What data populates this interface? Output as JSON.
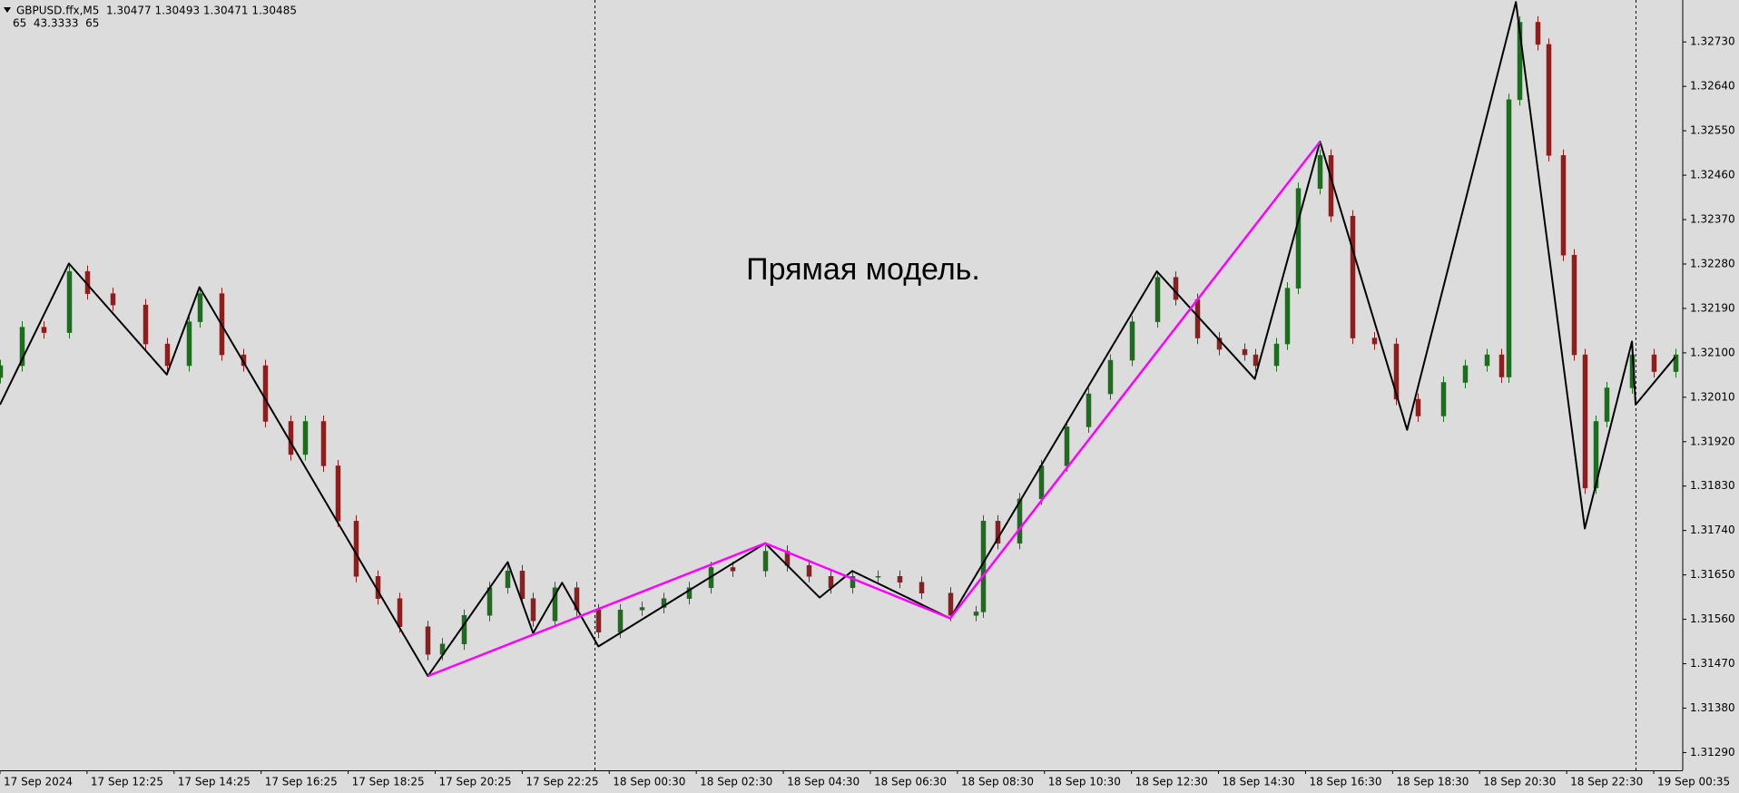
{
  "chart_data": {
    "type": "candlestick",
    "header": "GBPUSD.ffx,M5  1.30477 1.30493 1.30471 1.30485",
    "indicator": "65  43.3333  65",
    "annotation": "Прямая модель.",
    "up_color": "#1f6b1f",
    "down_color": "#8b1e1e",
    "background": "#dcdcdc",
    "x": [
      0,
      6,
      12,
      19,
      24,
      31,
      40,
      46,
      52,
      55,
      61,
      67,
      73,
      80,
      84,
      89,
      93,
      98,
      104,
      110,
      118,
      122,
      128,
      135,
      140,
      144,
      147,
      153,
      159,
      165,
      171,
      177,
      183,
      190,
      196,
      202,
      211,
      217,
      223,
      229,
      235,
      242,
      248,
      254,
      262,
      269,
      271,
      275,
      281,
      287,
      294,
      300,
      306,
      312,
      319,
      324,
      330,
      336,
      343,
      346,
      352,
      355,
      358,
      364,
      367,
      373,
      379,
      385,
      391,
      398,
      404,
      410,
      414,
      416,
      419,
      424,
      427,
      431,
      434,
      437,
      440,
      443,
      450,
      456,
      462
    ],
    "open": [
      1.3205,
      1.32074,
      1.32152,
      1.32141,
      1.32265,
      1.3222,
      1.32197,
      1.32118,
      1.32074,
      1.32163,
      1.3222,
      1.32096,
      1.32074,
      1.31961,
      1.31894,
      1.31961,
      1.31871,
      1.31759,
      1.31647,
      1.31602,
      1.31545,
      1.31489,
      1.3151,
      1.31568,
      1.31624,
      1.31658,
      1.31602,
      1.31557,
      1.31624,
      1.31579,
      1.31534,
      1.31579,
      1.31584,
      1.31602,
      1.31624,
      1.31665,
      1.31658,
      1.31698,
      1.31669,
      1.31647,
      1.31624,
      1.31647,
      1.31647,
      1.31635,
      1.31613,
      1.31568,
      1.31575,
      1.31759,
      1.31714,
      1.31804,
      1.31871,
      1.3195,
      1.32017,
      1.32085,
      1.32163,
      1.32253,
      1.32208,
      1.3213,
      1.32107,
      1.32096,
      1.32074,
      1.32118,
      1.32231,
      1.32433,
      1.325,
      1.32377,
      1.3213,
      1.32118,
      1.32006,
      1.31972,
      1.3204,
      1.32074,
      1.32096,
      1.32051,
      1.32613,
      1.3277,
      1.32725,
      1.325,
      1.32298,
      1.32096,
      1.31826,
      1.31961,
      1.32029,
      1.32096,
      1.32062
    ],
    "high": [
      1.32086,
      1.32164,
      1.32164,
      1.32277,
      1.32277,
      1.32232,
      1.32209,
      1.3213,
      1.32175,
      1.32232,
      1.32232,
      1.32108,
      1.32086,
      1.31973,
      1.31973,
      1.31973,
      1.31883,
      1.31771,
      1.31659,
      1.31614,
      1.31557,
      1.31522,
      1.3158,
      1.31636,
      1.3167,
      1.3167,
      1.31614,
      1.31636,
      1.31636,
      1.31591,
      1.31591,
      1.31596,
      1.31614,
      1.31636,
      1.31677,
      1.31677,
      1.3171,
      1.3171,
      1.31681,
      1.31659,
      1.31659,
      1.31659,
      1.31659,
      1.31647,
      1.31625,
      1.31587,
      1.31771,
      1.31771,
      1.31816,
      1.31883,
      1.31962,
      1.32029,
      1.32097,
      1.32175,
      1.32265,
      1.32265,
      1.3222,
      1.32142,
      1.32119,
      1.32108,
      1.3213,
      1.32243,
      1.32445,
      1.32512,
      1.32512,
      1.32389,
      1.32142,
      1.3213,
      1.32018,
      1.32052,
      1.32086,
      1.32108,
      1.32108,
      1.32625,
      1.32782,
      1.32782,
      1.32737,
      1.32512,
      1.3231,
      1.32108,
      1.31973,
      1.32041,
      1.32108,
      1.32108,
      1.32108
    ],
    "low": [
      1.32038,
      1.32062,
      1.32129,
      1.32129,
      1.32208,
      1.32185,
      1.32106,
      1.32062,
      1.32062,
      1.32151,
      1.32084,
      1.32062,
      1.31949,
      1.31882,
      1.31882,
      1.31859,
      1.31747,
      1.31635,
      1.3159,
      1.31533,
      1.31477,
      1.31477,
      1.31498,
      1.31556,
      1.31612,
      1.3159,
      1.31545,
      1.31545,
      1.31567,
      1.31522,
      1.31522,
      1.31567,
      1.31572,
      1.3159,
      1.31612,
      1.31646,
      1.31646,
      1.31657,
      1.31635,
      1.31612,
      1.31612,
      1.31635,
      1.31623,
      1.31601,
      1.31556,
      1.31556,
      1.31563,
      1.31702,
      1.31702,
      1.31792,
      1.31859,
      1.31938,
      1.32005,
      1.32073,
      1.32151,
      1.32196,
      1.32118,
      1.32095,
      1.32084,
      1.32062,
      1.32062,
      1.32106,
      1.32219,
      1.32421,
      1.32365,
      1.32118,
      1.32106,
      1.31994,
      1.3196,
      1.3196,
      1.32028,
      1.32062,
      1.32039,
      1.32039,
      1.32601,
      1.32713,
      1.32488,
      1.32286,
      1.32084,
      1.31814,
      1.31814,
      1.31949,
      1.32017,
      1.3205,
      1.3205
    ],
    "close": [
      1.32074,
      1.32152,
      1.32141,
      1.32265,
      1.3222,
      1.32197,
      1.32118,
      1.32074,
      1.32163,
      1.3222,
      1.32096,
      1.32074,
      1.31961,
      1.31894,
      1.31961,
      1.31871,
      1.31759,
      1.31647,
      1.31602,
      1.31545,
      1.31489,
      1.3151,
      1.31568,
      1.31624,
      1.31658,
      1.31602,
      1.31557,
      1.31624,
      1.31579,
      1.31534,
      1.31579,
      1.31584,
      1.31602,
      1.31624,
      1.31665,
      1.31658,
      1.31698,
      1.31669,
      1.31647,
      1.31624,
      1.31647,
      1.31647,
      1.31635,
      1.31613,
      1.31568,
      1.31575,
      1.31759,
      1.31714,
      1.31804,
      1.31871,
      1.3195,
      1.32017,
      1.32085,
      1.32163,
      1.32253,
      1.32208,
      1.3213,
      1.32107,
      1.32096,
      1.32074,
      1.32118,
      1.32231,
      1.32433,
      1.325,
      1.32377,
      1.3213,
      1.32118,
      1.32006,
      1.31972,
      1.3204,
      1.32074,
      1.32096,
      1.32051,
      1.32613,
      1.3277,
      1.32725,
      1.325,
      1.32298,
      1.32096,
      1.31826,
      1.31961,
      1.32029,
      1.32096,
      1.32062,
      1.32096
    ],
    "zigzag": {
      "color": "#000000",
      "x": [
        0,
        19,
        46,
        55,
        118,
        140,
        147,
        155,
        165,
        211,
        226,
        235,
        262,
        319,
        346,
        364,
        388,
        418,
        437,
        450,
        451,
        462
      ],
      "y": [
        1.31995,
        1.32281,
        1.32056,
        1.32233,
        1.31445,
        1.31676,
        1.31532,
        1.31634,
        1.31505,
        1.31714,
        1.31604,
        1.31658,
        1.31562,
        1.32265,
        1.32047,
        1.32528,
        1.31944,
        1.32811,
        1.31744,
        1.32123,
        1.31995,
        1.32092
      ]
    },
    "pattern": {
      "color": "#ff00ff",
      "x": [
        118,
        211,
        262,
        364
      ],
      "y": [
        1.31445,
        1.31714,
        1.31562,
        1.32528
      ]
    },
    "separators": [
      164,
      451
    ],
    "xlim": [
      0,
      464
    ],
    "ylim": [
      1.31254,
      1.32815
    ],
    "xticks": [
      {
        "value": 0,
        "label": "17 Sep 2024"
      },
      {
        "value": 24,
        "label": "17 Sep 12:25"
      },
      {
        "value": 48,
        "label": "17 Sep 14:25"
      },
      {
        "value": 72,
        "label": "17 Sep 16:25"
      },
      {
        "value": 96,
        "label": "17 Sep 18:25"
      },
      {
        "value": 120,
        "label": "17 Sep 20:25"
      },
      {
        "value": 144,
        "label": "17 Sep 22:25"
      },
      {
        "value": 168,
        "label": "18 Sep 00:30"
      },
      {
        "value": 192,
        "label": "18 Sep 02:30"
      },
      {
        "value": 216,
        "label": "18 Sep 04:30"
      },
      {
        "value": 240,
        "label": "18 Sep 06:30"
      },
      {
        "value": 264,
        "label": "18 Sep 08:30"
      },
      {
        "value": 288,
        "label": "18 Sep 10:30"
      },
      {
        "value": 312,
        "label": "18 Sep 12:30"
      },
      {
        "value": 336,
        "label": "18 Sep 14:30"
      },
      {
        "value": 360,
        "label": "18 Sep 16:30"
      },
      {
        "value": 384,
        "label": "18 Sep 18:30"
      },
      {
        "value": 408,
        "label": "18 Sep 20:30"
      },
      {
        "value": 432,
        "label": "18 Sep 22:30"
      },
      {
        "value": 456,
        "label": "19 Sep 00:35"
      }
    ],
    "yticks": [
      {
        "value": 1.3273,
        "label": "1.32730"
      },
      {
        "value": 1.3264,
        "label": "1.32640"
      },
      {
        "value": 1.3255,
        "label": "1.32550"
      },
      {
        "value": 1.3246,
        "label": "1.32460"
      },
      {
        "value": 1.3237,
        "label": "1.32370"
      },
      {
        "value": 1.3228,
        "label": "1.32280"
      },
      {
        "value": 1.3219,
        "label": "1.32190"
      },
      {
        "value": 1.321,
        "label": "1.32100"
      },
      {
        "value": 1.3201,
        "label": "1.32010"
      },
      {
        "value": 1.3192,
        "label": "1.31920"
      },
      {
        "value": 1.3183,
        "label": "1.31830"
      },
      {
        "value": 1.3174,
        "label": "1.31740"
      },
      {
        "value": 1.3165,
        "label": "1.31650"
      },
      {
        "value": 1.3156,
        "label": "1.31560"
      },
      {
        "value": 1.3147,
        "label": "1.31470"
      },
      {
        "value": 1.3138,
        "label": "1.31380"
      },
      {
        "value": 1.3129,
        "label": "1.31290"
      }
    ]
  }
}
